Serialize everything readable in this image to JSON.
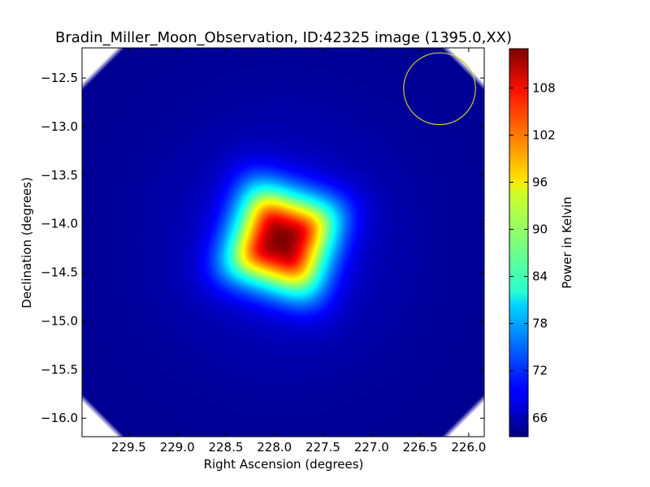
{
  "chart_data": {
    "type": "heatmap",
    "title": "Bradin_Miller_Moon_Observation, ID:42325 image (1395.0,XX)",
    "xlabel": "Right Ascension (degrees)",
    "ylabel": "Declination (degrees)",
    "xlim": [
      229.98,
      225.84
    ],
    "ylim": [
      -16.19,
      -12.19
    ],
    "x_ticks": [
      229.5,
      229.0,
      228.5,
      228.0,
      227.5,
      227.0,
      226.5,
      226.0
    ],
    "x_tick_labels": [
      "229.5",
      "229.0",
      "228.5",
      "228.0",
      "227.5",
      "227.0",
      "226.5",
      "226.0"
    ],
    "y_ticks": [
      -12.5,
      -13.0,
      -13.5,
      -14.0,
      -14.5,
      -15.0,
      -15.5,
      -16.0
    ],
    "y_tick_labels": [
      "−12.5",
      "−13.0",
      "−13.5",
      "−14.0",
      "−14.5",
      "−15.0",
      "−15.5",
      "−16.0"
    ],
    "colormap": "jet",
    "colorbar": {
      "label": "Power in Kelvin",
      "vmin": 63.6,
      "vmax": 113.0,
      "ticks": [
        66,
        72,
        78,
        84,
        90,
        96,
        102,
        108
      ],
      "tick_labels": [
        "66",
        "72",
        "78",
        "84",
        "90",
        "96",
        "102",
        "108"
      ]
    },
    "peak": {
      "ra": 227.93,
      "dec": -14.17,
      "value": 113.0
    },
    "background_value": 64.5,
    "source_halfwidth_deg": 0.55,
    "beam_circle": {
      "ra": 226.3,
      "dec": -12.61,
      "radius_deg": 0.37,
      "color": "#c8c82a"
    },
    "grid": false,
    "legend": "none"
  }
}
